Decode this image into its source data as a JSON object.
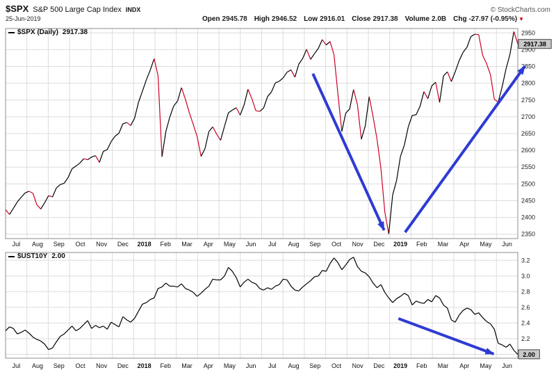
{
  "header": {
    "symbol": "$SPX",
    "name": "S&P 500 Large Cap Index",
    "exchange": "INDX",
    "copyright": "© StockCharts.com",
    "date": "25-Jun-2019",
    "quotes": [
      {
        "label": "Open",
        "value": "2945.78"
      },
      {
        "label": "High",
        "value": "2946.52"
      },
      {
        "label": "Low",
        "value": "2916.01"
      },
      {
        "label": "Close",
        "value": "2917.38"
      },
      {
        "label": "Volume",
        "value": "2.0B"
      },
      {
        "label": "Chg",
        "value": "-27.97 (-0.95%)"
      }
    ],
    "change_direction_icon": "▼",
    "change_color": "#cc0000"
  },
  "chart_data": [
    {
      "type": "line",
      "symbol": "$SPX",
      "timeframe": "Daily",
      "legend_label": "$SPX (Daily)",
      "legend_value": "2917.38",
      "last_value_label": "2917.38",
      "line_mode": "two-tone",
      "up_color": "#000000",
      "down_color": "#cc0022",
      "annotation_color": "#2e3bd3",
      "ylim": [
        2337,
        2963
      ],
      "yticks": [
        2350,
        2400,
        2450,
        2500,
        2550,
        2600,
        2650,
        2700,
        2750,
        2800,
        2850,
        2900,
        2950
      ],
      "tick_decimals": 0,
      "x_labels": [
        "Jul",
        "Aug",
        "Sep",
        "Oct",
        "Nov",
        "Dec",
        "2018",
        "Feb",
        "Mar",
        "Apr",
        "May",
        "Jun",
        "Jul",
        "Aug",
        "Sep",
        "Oct",
        "Nov",
        "Dec",
        "2019",
        "Feb",
        "Mar",
        "Apr",
        "May",
        "Jun"
      ],
      "values": [
        2423,
        2409,
        2427,
        2446,
        2460,
        2473,
        2478,
        2472,
        2438,
        2425,
        2444,
        2465,
        2461,
        2488,
        2498,
        2502,
        2519,
        2545,
        2553,
        2562,
        2575,
        2572,
        2580,
        2584,
        2564,
        2597,
        2602,
        2626,
        2642,
        2651,
        2679,
        2683,
        2674,
        2696,
        2743,
        2776,
        2810,
        2839,
        2873,
        2822,
        2581,
        2656,
        2699,
        2732,
        2747,
        2787,
        2752,
        2712,
        2677,
        2641,
        2582,
        2605,
        2656,
        2670,
        2648,
        2630,
        2672,
        2712,
        2720,
        2727,
        2705,
        2735,
        2782,
        2754,
        2718,
        2716,
        2726,
        2760,
        2774,
        2801,
        2806,
        2816,
        2833,
        2840,
        2818,
        2857,
        2874,
        2901,
        2871,
        2888,
        2904,
        2930,
        2914,
        2924,
        2885,
        2768,
        2656,
        2711,
        2723,
        2781,
        2736,
        2633,
        2673,
        2760,
        2700,
        2633,
        2546,
        2416,
        2351,
        2467,
        2510,
        2582,
        2616,
        2670,
        2704,
        2706,
        2731,
        2775,
        2754,
        2792,
        2803,
        2743,
        2822,
        2834,
        2805,
        2834,
        2867,
        2892,
        2907,
        2939,
        2946,
        2945,
        2884,
        2859,
        2826,
        2752,
        2744,
        2789,
        2843,
        2886,
        2954,
        2917
      ],
      "annotations": [
        {
          "type": "arrow",
          "from": [
            0.6,
            0.215
          ],
          "to": [
            0.739,
            0.96
          ]
        },
        {
          "type": "arrow",
          "from": [
            0.78,
            0.97
          ],
          "to": [
            1.014,
            0.179
          ]
        }
      ]
    },
    {
      "type": "line",
      "symbol": "$UST10Y",
      "legend_label": "$UST10Y",
      "legend_value": "2.00",
      "last_value_label": "2.00",
      "line_mode": "solid",
      "line_color": "#000000",
      "annotation_color": "#2e3bd3",
      "ylim": [
        1.95,
        3.3
      ],
      "yticks": [
        2.0,
        2.2,
        2.4,
        2.6,
        2.8,
        3.0,
        3.2
      ],
      "tick_decimals": 1,
      "x_labels": [
        "Jul",
        "Aug",
        "Sep",
        "Oct",
        "Nov",
        "Dec",
        "2018",
        "Feb",
        "Mar",
        "Apr",
        "May",
        "Jun",
        "Jul",
        "Aug",
        "Sep",
        "Oct",
        "Nov",
        "Dec",
        "2019",
        "Feb",
        "Mar",
        "Apr",
        "May",
        "Jun"
      ],
      "values": [
        2.3,
        2.35,
        2.33,
        2.26,
        2.28,
        2.31,
        2.27,
        2.22,
        2.19,
        2.17,
        2.13,
        2.06,
        2.08,
        2.16,
        2.23,
        2.26,
        2.31,
        2.36,
        2.3,
        2.33,
        2.38,
        2.43,
        2.33,
        2.37,
        2.34,
        2.36,
        2.32,
        2.41,
        2.38,
        2.35,
        2.48,
        2.44,
        2.41,
        2.46,
        2.55,
        2.64,
        2.66,
        2.7,
        2.72,
        2.84,
        2.86,
        2.91,
        2.87,
        2.87,
        2.86,
        2.9,
        2.84,
        2.82,
        2.79,
        2.74,
        2.78,
        2.83,
        2.87,
        2.96,
        2.95,
        2.95,
        3.0,
        3.11,
        3.06,
        2.98,
        2.86,
        2.92,
        2.96,
        2.92,
        2.9,
        2.84,
        2.82,
        2.85,
        2.83,
        2.87,
        2.89,
        2.96,
        2.95,
        2.87,
        2.82,
        2.81,
        2.86,
        2.9,
        2.94,
        2.99,
        3.0,
        3.07,
        3.06,
        3.16,
        3.23,
        3.17,
        3.08,
        3.14,
        3.21,
        3.24,
        3.12,
        3.06,
        3.04,
        2.99,
        2.91,
        2.85,
        2.89,
        2.79,
        2.72,
        2.66,
        2.71,
        2.74,
        2.78,
        2.75,
        2.63,
        2.68,
        2.66,
        2.65,
        2.7,
        2.67,
        2.75,
        2.72,
        2.63,
        2.59,
        2.44,
        2.41,
        2.5,
        2.56,
        2.59,
        2.57,
        2.51,
        2.53,
        2.47,
        2.42,
        2.39,
        2.32,
        2.14,
        2.12,
        2.09,
        2.13,
        2.05,
        2.0
      ],
      "annotations": [
        {
          "type": "arrow",
          "from": [
            0.767,
            0.625
          ],
          "to": [
            0.953,
            0.96
          ]
        }
      ]
    }
  ]
}
